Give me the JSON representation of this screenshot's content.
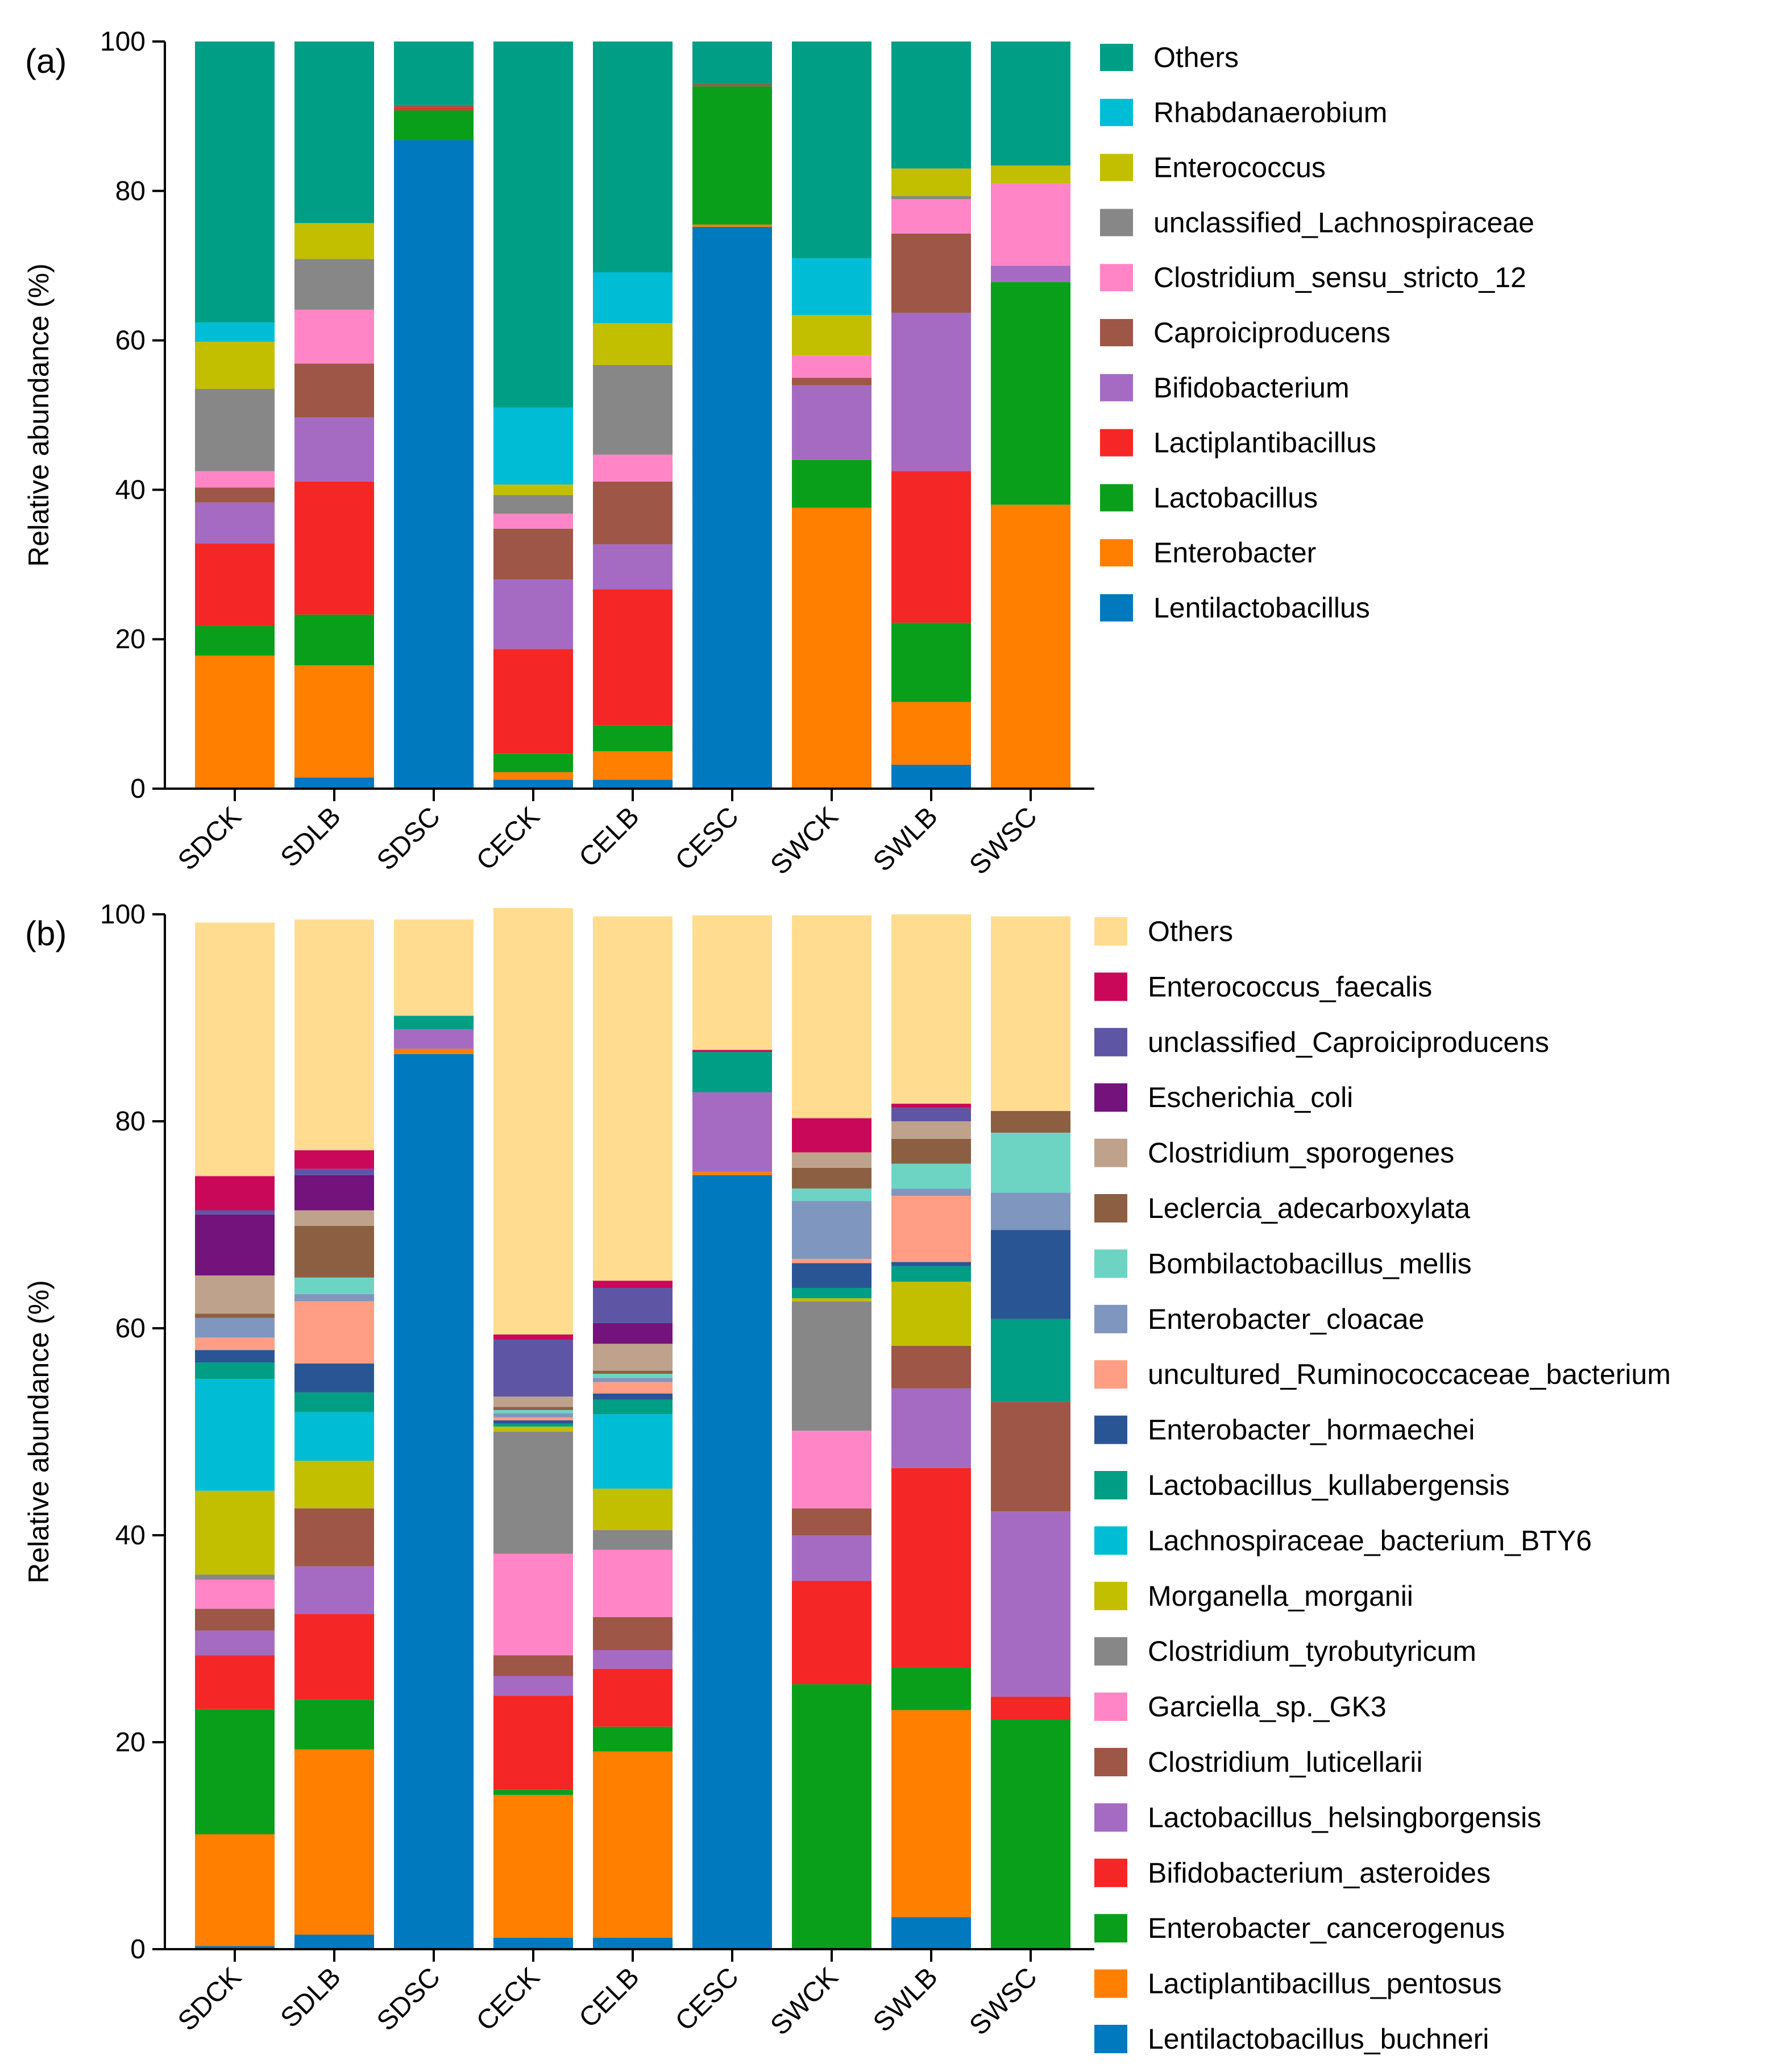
{
  "figure": {
    "panel_labels": [
      "(a)",
      "(b)"
    ]
  },
  "chart_data": [
    {
      "type": "bar",
      "stacked": true,
      "panel": "(a)",
      "title": "",
      "xlabel": "",
      "ylabel": "Relative abundance (%)",
      "ylim": [
        0,
        100
      ],
      "yticks": [
        0,
        20,
        40,
        60,
        80,
        100
      ],
      "categories": [
        "SDCK",
        "SDLB",
        "SDSC",
        "CECK",
        "CELB",
        "CESC",
        "SWCK",
        "SWLB",
        "SWSC"
      ],
      "series": [
        {
          "name": "Lentilactobacillus",
          "color": "#0079BE",
          "values": [
            0,
            1.5,
            86.8,
            1.2,
            1.2,
            75.2,
            0,
            3.2,
            0
          ]
        },
        {
          "name": "Enterobacter",
          "color": "#FF7F00",
          "values": [
            17.8,
            15.0,
            0,
            1.0,
            3.8,
            0.3,
            37.6,
            8.4,
            38.0
          ]
        },
        {
          "name": "Lactobacillus",
          "color": "#0A9F1A",
          "values": [
            4.0,
            6.8,
            4.0,
            2.5,
            3.5,
            18.5,
            6.4,
            10.6,
            29.8
          ]
        },
        {
          "name": "Lactiplantibacillus",
          "color": "#F52626",
          "values": [
            11.0,
            17.8,
            0.3,
            14.0,
            18.2,
            0,
            0,
            20.3,
            0
          ]
        },
        {
          "name": "Bifidobacterium",
          "color": "#A56BC2",
          "values": [
            5.5,
            8.6,
            0,
            9.3,
            6.0,
            0,
            10.0,
            21.2,
            2.2
          ]
        },
        {
          "name": "Caproiciproducens",
          "color": "#9E5646",
          "values": [
            2.0,
            7.2,
            0.4,
            6.8,
            8.4,
            0.3,
            1.0,
            10.6,
            0
          ]
        },
        {
          "name": "Clostridium_sensu_stricto_12",
          "color": "#FF85C6",
          "values": [
            2.2,
            7.2,
            0,
            2.0,
            3.6,
            0,
            3.0,
            4.6,
            11.0
          ]
        },
        {
          "name": "unclassified_Lachnospiraceae",
          "color": "#878787",
          "values": [
            11.0,
            6.8,
            0,
            2.5,
            12.0,
            0,
            0,
            0.4,
            0
          ]
        },
        {
          "name": "Enterococcus",
          "color": "#C2BE00",
          "values": [
            6.3,
            4.8,
            0,
            1.4,
            5.6,
            0,
            5.4,
            3.7,
            2.4
          ]
        },
        {
          "name": "Rhabdanaerobium",
          "color": "#00BDD6",
          "values": [
            2.6,
            0,
            0,
            10.3,
            6.8,
            0,
            7.6,
            0,
            0
          ]
        },
        {
          "name": "Others",
          "color": "#009E84",
          "values": [
            37.6,
            24.3,
            8.5,
            49.0,
            30.9,
            5.7,
            29.0,
            17.0,
            16.6
          ]
        }
      ]
    },
    {
      "type": "bar",
      "stacked": true,
      "panel": "(b)",
      "title": "",
      "xlabel": "",
      "ylabel": "Relative abundance (%)",
      "ylim": [
        0,
        100
      ],
      "yticks": [
        0,
        20,
        40,
        60,
        80,
        100
      ],
      "categories": [
        "SDCK",
        "SDLB",
        "SDSC",
        "CECK",
        "CELB",
        "CESC",
        "SWCK",
        "SWLB",
        "SWSC"
      ],
      "series": [
        {
          "name": "Lentilactobacillus_buchneri",
          "color": "#0079BE",
          "values": [
            0.3,
            1.4,
            86.5,
            1.1,
            1.1,
            74.8,
            0,
            3.1,
            0
          ]
        },
        {
          "name": "Lactiplantibacillus_pentosus",
          "color": "#FF7F00",
          "values": [
            10.8,
            17.9,
            0.5,
            13.8,
            18.0,
            0.3,
            0,
            20.0,
            0
          ]
        },
        {
          "name": "Enterobacter_cancerogenus",
          "color": "#0A9F1A",
          "values": [
            12.1,
            4.8,
            0,
            0.5,
            2.4,
            0,
            25.6,
            4.1,
            22.2
          ]
        },
        {
          "name": "Bifidobacterium_asteroides",
          "color": "#F52626",
          "values": [
            5.2,
            8.3,
            0,
            9.1,
            5.6,
            0,
            10.0,
            19.3,
            2.2
          ]
        },
        {
          "name": "Lactobacillus_helsingborgensis",
          "color": "#A56BC2",
          "values": [
            2.4,
            4.6,
            1.9,
            1.9,
            1.8,
            7.7,
            4.4,
            7.7,
            17.9
          ]
        },
        {
          "name": "Clostridium_luticellarii",
          "color": "#9E5646",
          "values": [
            2.1,
            5.6,
            0,
            2.0,
            3.2,
            0,
            2.6,
            4.1,
            10.6
          ]
        },
        {
          "name": "Garciella_sp._GK3",
          "color": "#FF85C6",
          "values": [
            2.8,
            0,
            0,
            9.8,
            6.5,
            0,
            7.5,
            0,
            0
          ]
        },
        {
          "name": "Clostridium_tyrobutyricum",
          "color": "#878787",
          "values": [
            0.5,
            0,
            0,
            11.8,
            1.9,
            0,
            12.5,
            0,
            0
          ]
        },
        {
          "name": "Morganella_morganii",
          "color": "#C2BE00",
          "values": [
            8.1,
            4.6,
            0,
            0.5,
            4.0,
            0,
            0.3,
            6.2,
            0
          ]
        },
        {
          "name": "Lachnospiraceae_bacterium_BTY6",
          "color": "#00BDD6",
          "values": [
            10.8,
            4.7,
            0,
            0,
            7.2,
            0,
            0,
            0,
            0
          ]
        },
        {
          "name": "Lactobacillus_kullabergensis",
          "color": "#009E84",
          "values": [
            1.6,
            1.9,
            1.3,
            0.3,
            1.4,
            3.9,
            1.0,
            1.5,
            8.0
          ]
        },
        {
          "name": "Enterobacter_hormaechei",
          "color": "#2A5595",
          "values": [
            1.2,
            2.8,
            0,
            0.3,
            0.6,
            0,
            2.4,
            0.4,
            8.6
          ]
        },
        {
          "name": "uncultured_Ruminococcaceae_bacterium",
          "color": "#FF9E84",
          "values": [
            1.2,
            6.0,
            0,
            0.3,
            1.1,
            0,
            0.4,
            6.4,
            0
          ]
        },
        {
          "name": "Enterobacter_cloacae",
          "color": "#7F96BE",
          "values": [
            1.9,
            0.7,
            0,
            0.4,
            0.4,
            0,
            5.6,
            0.7,
            3.6
          ]
        },
        {
          "name": "Bombilactobacillus_mellis",
          "color": "#6DD4C4",
          "values": [
            0,
            1.6,
            0,
            0.3,
            0.4,
            0,
            1.2,
            2.4,
            5.8
          ]
        },
        {
          "name": "Leclercia_adecarboxylata",
          "color": "#8C5F42",
          "values": [
            0.4,
            5.0,
            0,
            0.3,
            0.3,
            0,
            2.0,
            2.4,
            2.1
          ]
        },
        {
          "name": "Clostridium_sporogenes",
          "color": "#BEA28C",
          "values": [
            3.7,
            1.5,
            0,
            1.0,
            2.6,
            0,
            1.5,
            1.7,
            0
          ]
        },
        {
          "name": "Escherichia_coli",
          "color": "#73137B",
          "values": [
            5.9,
            3.4,
            0,
            0,
            2.0,
            0,
            0,
            0,
            0
          ]
        },
        {
          "name": "unclassified_Caproiciproducens",
          "color": "#5E55A5",
          "values": [
            0.4,
            0.6,
            0,
            5.5,
            3.4,
            0,
            0,
            1.3,
            0
          ]
        },
        {
          "name": "Enterococcus_faecalis",
          "color": "#C9085A",
          "values": [
            3.3,
            1.8,
            0,
            0.5,
            0.7,
            0.2,
            3.3,
            0.4,
            0
          ]
        },
        {
          "name": "Others",
          "color": "#FFDC90",
          "values": [
            24.5,
            22.3,
            9.3,
            41.2,
            35.2,
            13.0,
            19.6,
            18.3,
            18.8
          ]
        }
      ]
    }
  ]
}
